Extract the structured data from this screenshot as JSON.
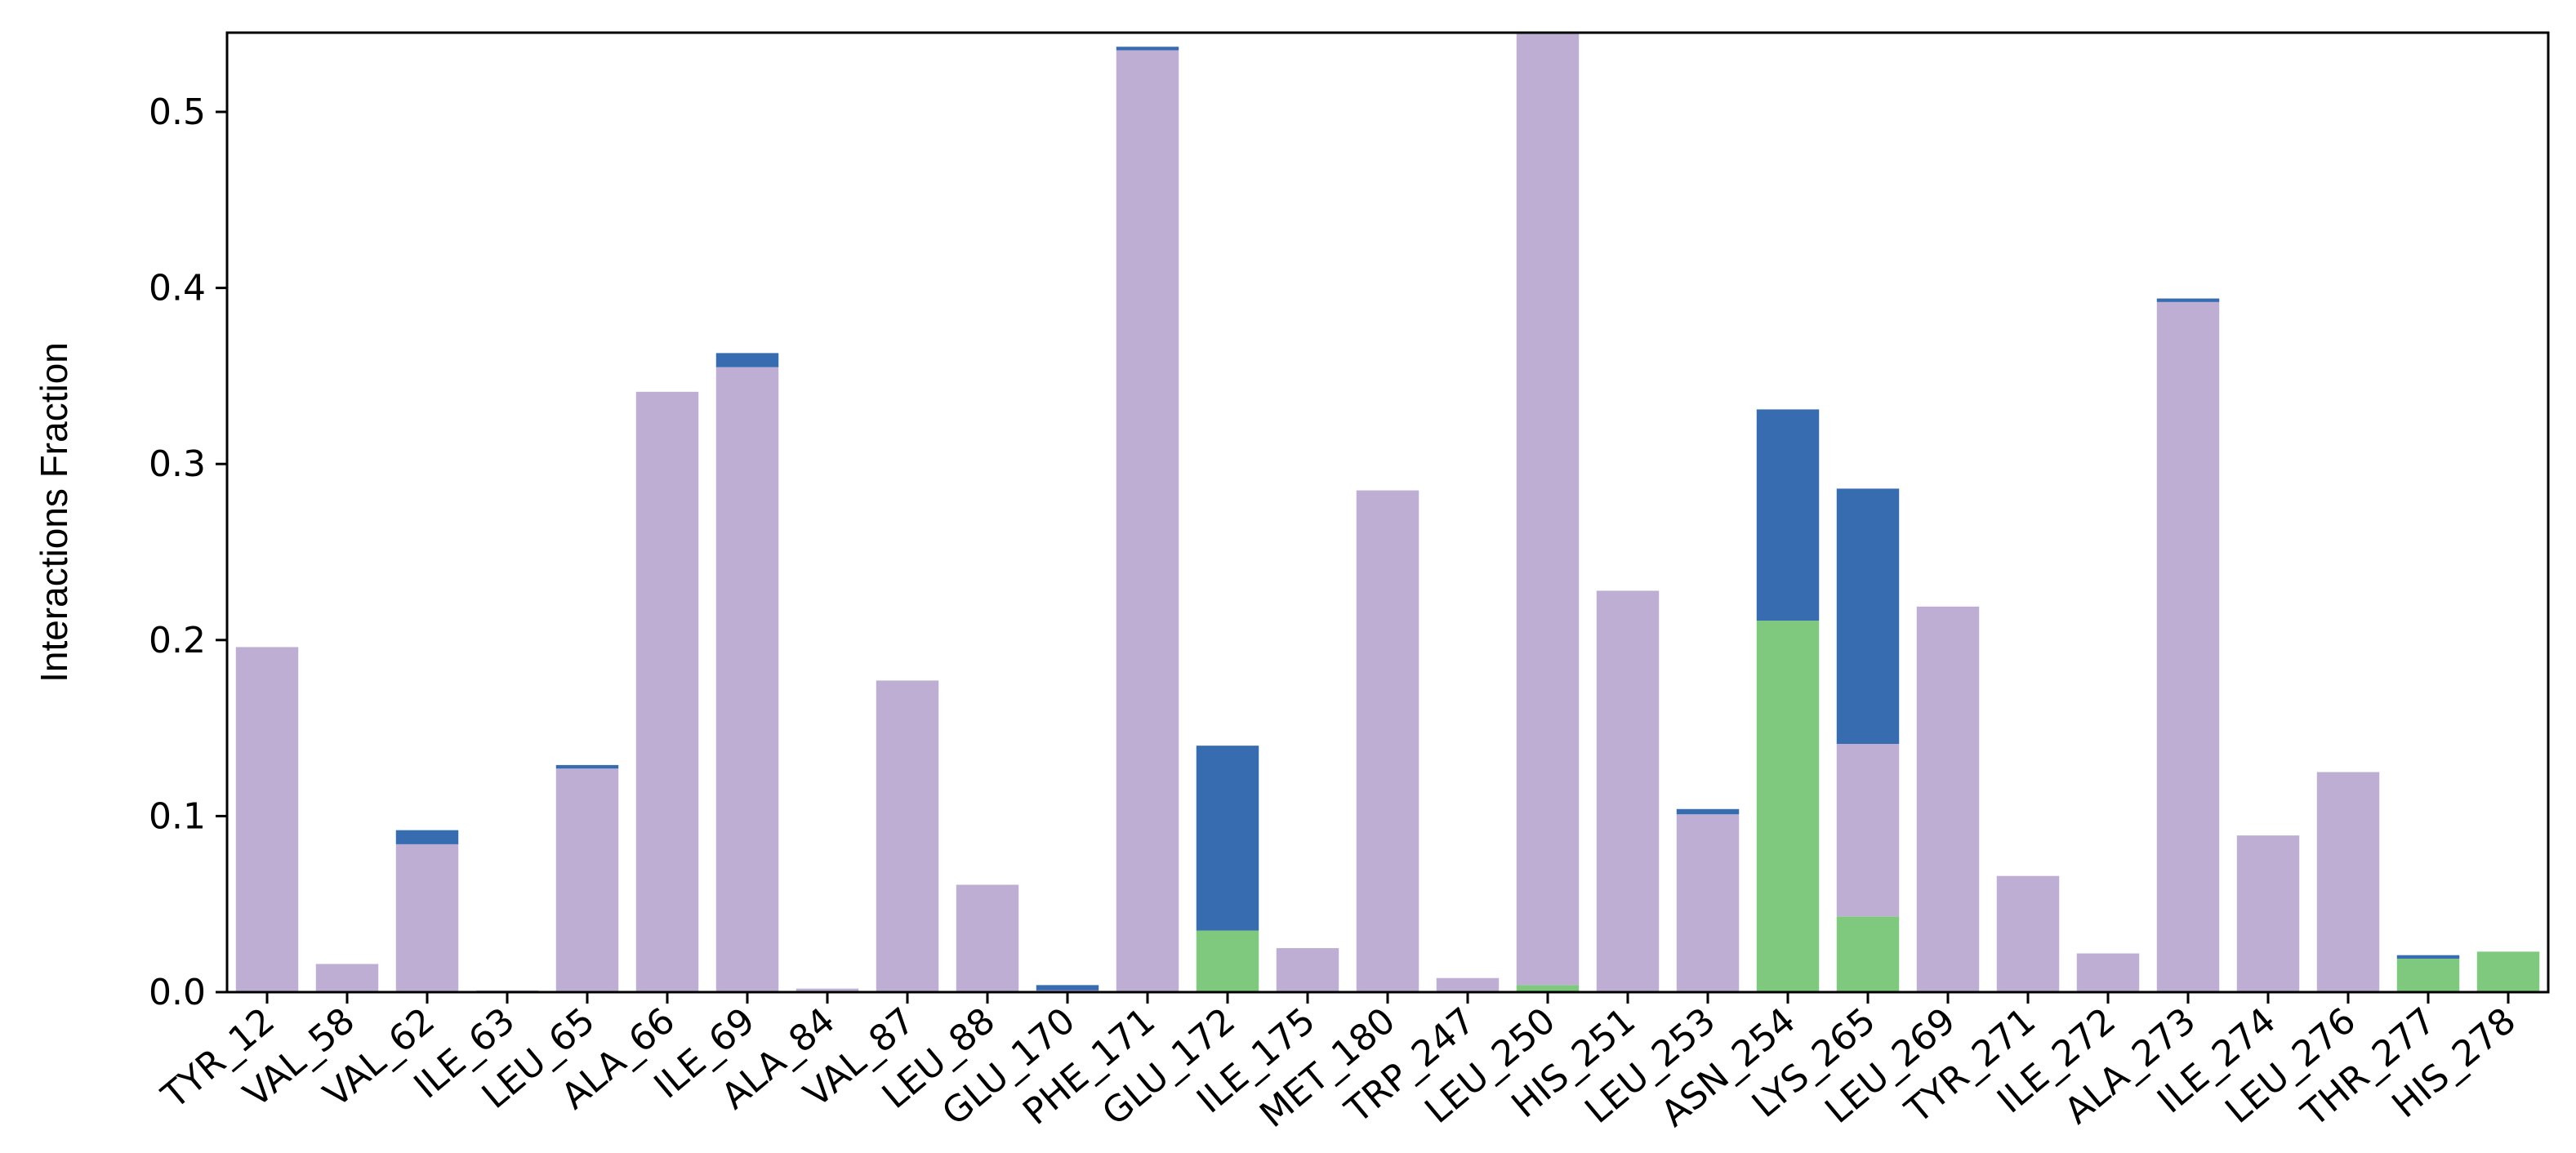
{
  "chart_data": {
    "type": "bar",
    "title": "",
    "xlabel": "",
    "ylabel": "Interactions Fraction",
    "ylim": [
      0,
      0.545
    ],
    "yticks": [
      0.0,
      0.1,
      0.2,
      0.3,
      0.4,
      0.5
    ],
    "ytick_labels": [
      "0.0",
      "0.1",
      "0.2",
      "0.3",
      "0.4",
      "0.5"
    ],
    "stacked": true,
    "grid": false,
    "legend": "none",
    "categories": [
      "TYR_12",
      "VAL_58",
      "VAL_62",
      "ILE_63",
      "LEU_65",
      "ALA_66",
      "ILE_69",
      "ALA_84",
      "VAL_87",
      "LEU_88",
      "GLU_170",
      "PHE_171",
      "GLU_172",
      "ILE_175",
      "MET_180",
      "TRP_247",
      "LEU_250",
      "HIS_251",
      "LEU_253",
      "ASN_254",
      "LYS_265",
      "LEU_269",
      "TYR_271",
      "ILE_272",
      "ALA_273",
      "ILE_274",
      "LEU_276",
      "THR_277",
      "HIS_278"
    ],
    "series": [
      {
        "color": "#7fc97f",
        "values": [
          0,
          0,
          0,
          0,
          0,
          0,
          0,
          0,
          0,
          0,
          0,
          0,
          0.035,
          0,
          0,
          0,
          0.004,
          0,
          0,
          0.211,
          0.043,
          0,
          0,
          0,
          0,
          0,
          0,
          0.019,
          0.023
        ]
      },
      {
        "color": "#beaed4",
        "values": [
          0.196,
          0.016,
          0.084,
          0.001,
          0.127,
          0.341,
          0.355,
          0.002,
          0.177,
          0.061,
          0.001,
          0.535,
          0,
          0.025,
          0.285,
          0.008,
          0.541,
          0.228,
          0.101,
          0,
          0.098,
          0.219,
          0.066,
          0.022,
          0.392,
          0.089,
          0.125,
          0,
          0
        ]
      },
      {
        "color": "#386cb0",
        "values": [
          0,
          0,
          0.008,
          0,
          0.002,
          0,
          0.008,
          0,
          0,
          0,
          0.003,
          0.002,
          0.105,
          0,
          0,
          0,
          0,
          0,
          0.003,
          0.12,
          0.145,
          0,
          0,
          0,
          0.002,
          0,
          0,
          0.002,
          0
        ]
      }
    ]
  }
}
